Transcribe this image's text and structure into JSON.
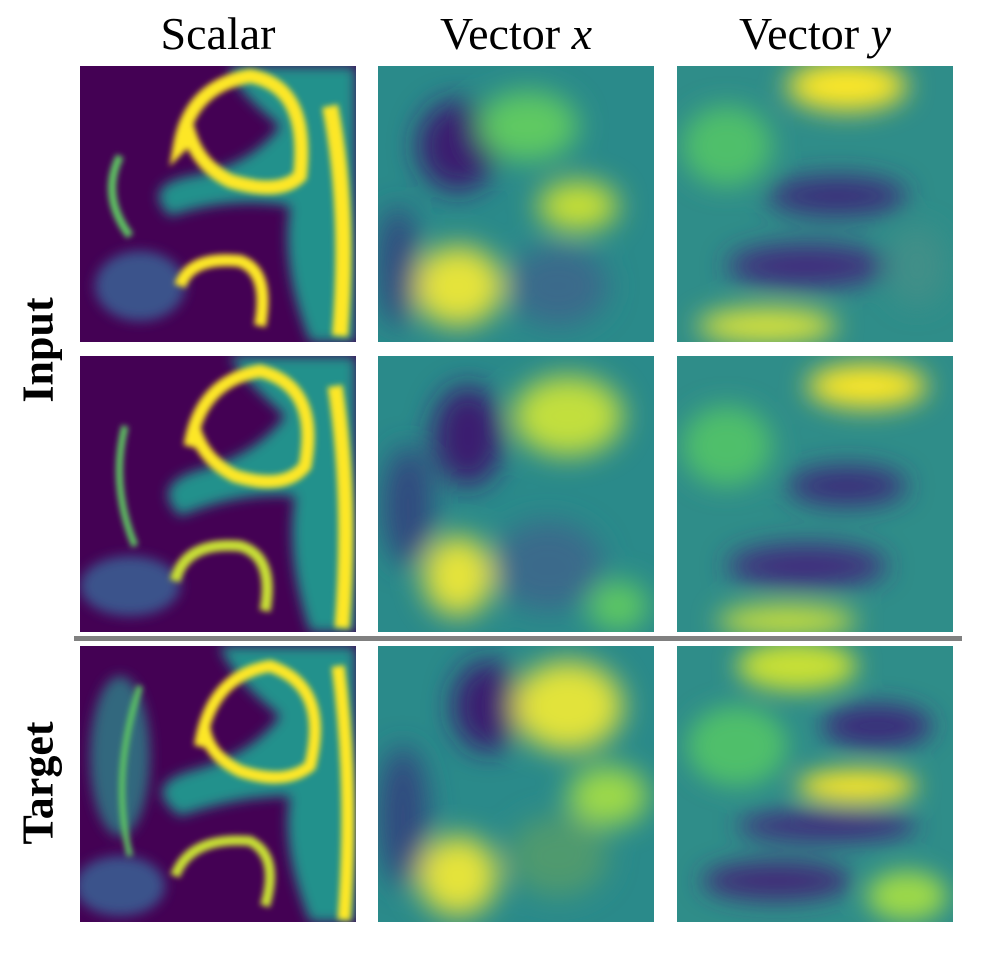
{
  "columns": {
    "scalar": {
      "label": "Scalar",
      "var": ""
    },
    "vector_x": {
      "label": "Vector ",
      "var": "x"
    },
    "vector_y": {
      "label": "Vector ",
      "var": "y"
    }
  },
  "rows": {
    "input": "Input",
    "target": "Target"
  },
  "colormap": {
    "low": "#440154",
    "mid_low": "#3b528b",
    "mid": "#21918c",
    "mid_high": "#5ec962",
    "high": "#fde725"
  }
}
